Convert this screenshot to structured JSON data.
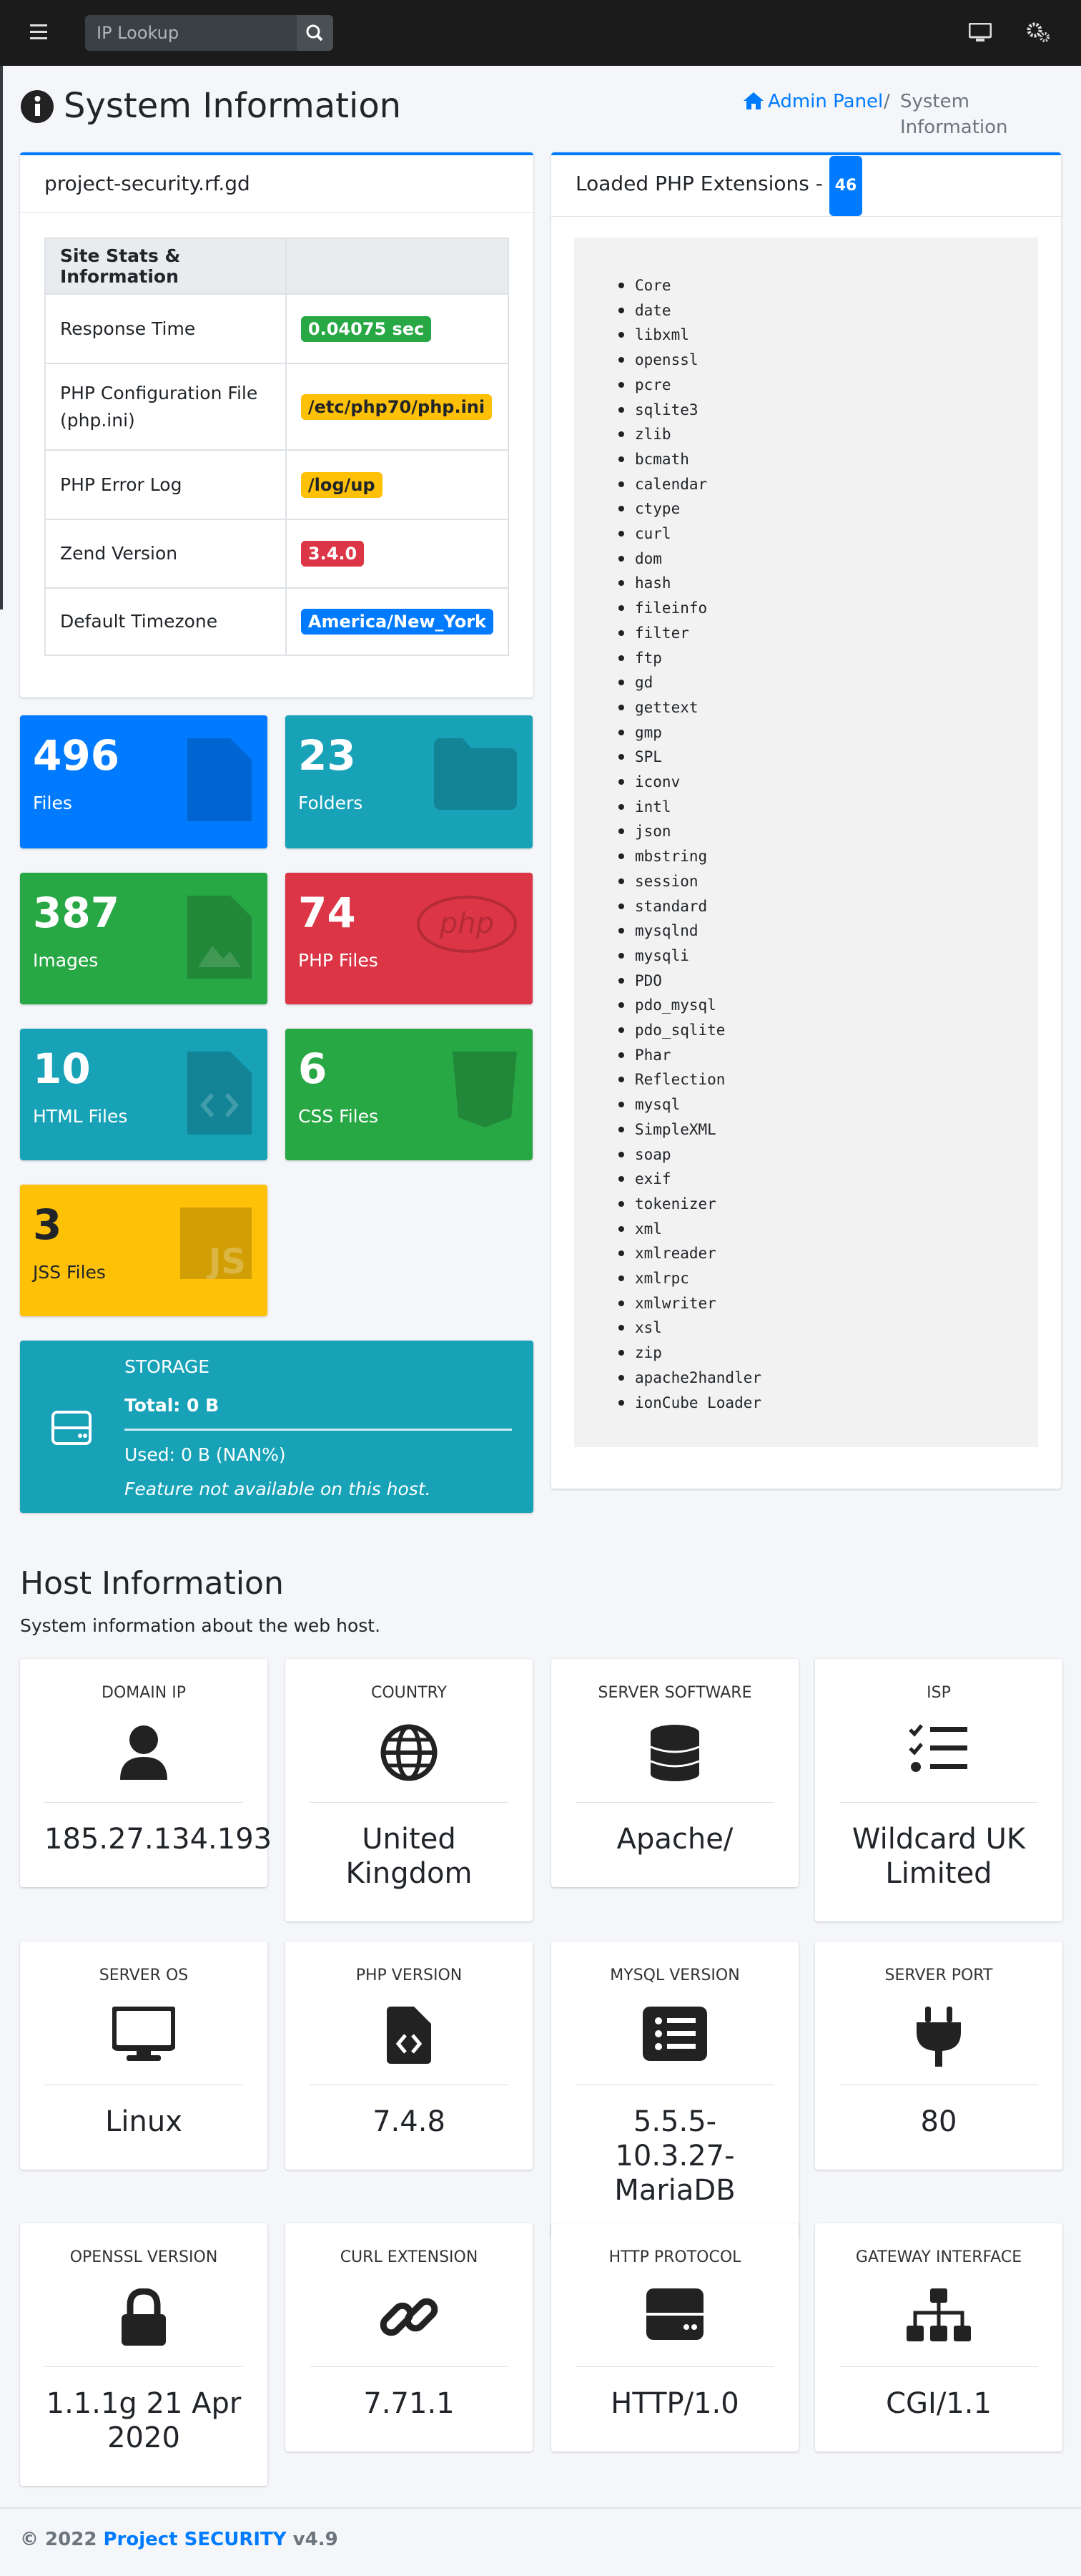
{
  "navbar": {
    "search_placeholder": "IP Lookup"
  },
  "header": {
    "title": "System Information",
    "breadcrumb": [
      "Admin Panel",
      "System Information"
    ]
  },
  "site_card": {
    "title": "project-security.rf.gd",
    "table_header": "Site Stats & Information",
    "rows": [
      [
        "Response Time",
        "0.04075 sec"
      ],
      [
        "PHP Configuration File (php.ini)",
        "/etc/php70/php.ini"
      ],
      [
        "PHP Error Log",
        "/log/up"
      ],
      [
        "Zend Version",
        "3.4.0"
      ],
      [
        "Default Timezone",
        "America/New_York"
      ]
    ]
  },
  "stats": [
    {
      "value": 496,
      "label": "Files"
    },
    {
      "value": 23,
      "label": "Folders"
    },
    {
      "value": 387,
      "label": "Images"
    },
    {
      "value": 74,
      "label": "PHP Files"
    },
    {
      "value": 10,
      "label": "HTML Files"
    },
    {
      "value": 6,
      "label": "CSS Files"
    },
    {
      "value": 3,
      "label": "JSS Files"
    }
  ],
  "storage": {
    "title": "STORAGE",
    "total": "Total: 0 B",
    "used": "Used: 0 B (NAN%)",
    "note": "Feature not available on this host."
  },
  "extensions": {
    "title": "Loaded PHP Extensions -",
    "count": 46,
    "items": [
      "Core",
      "date",
      "libxml",
      "openssl",
      "pcre",
      "sqlite3",
      "zlib",
      "bcmath",
      "calendar",
      "ctype",
      "curl",
      "dom",
      "hash",
      "fileinfo",
      "filter",
      "ftp",
      "gd",
      "gettext",
      "gmp",
      "SPL",
      "iconv",
      "intl",
      "json",
      "mbstring",
      "session",
      "standard",
      "mysqlnd",
      "mysqli",
      "PDO",
      "pdo_mysql",
      "pdo_sqlite",
      "Phar",
      "Reflection",
      "mysql",
      "SimpleXML",
      "soap",
      "exif",
      "tokenizer",
      "xml",
      "xmlreader",
      "xmlrpc",
      "xmlwriter",
      "xsl",
      "zip",
      "apache2handler",
      "ionCube Loader"
    ]
  },
  "host": {
    "title": "Host Information",
    "subtitle": "System information about the web host.",
    "cards": [
      {
        "label": "DOMAIN IP",
        "value": "185.27.134.193"
      },
      {
        "label": "COUNTRY",
        "value": "United Kingdom"
      },
      {
        "label": "SERVER SOFTWARE",
        "value": "Apache/"
      },
      {
        "label": "ISP",
        "value": "Wildcard UK Limited"
      },
      {
        "label": "SERVER OS",
        "value": "Linux"
      },
      {
        "label": "PHP VERSION",
        "value": "7.4.8"
      },
      {
        "label": "MYSQL VERSION",
        "value": "5.5.5-10.3.27-MariaDB"
      },
      {
        "label": "SERVER PORT",
        "value": "80"
      },
      {
        "label": "OPENSSL VERSION",
        "value": "1.1.1g 21 Apr 2020"
      },
      {
        "label": "CURL EXTENSION",
        "value": "7.71.1"
      },
      {
        "label": "HTTP PROTOCOL",
        "value": "HTTP/1.0"
      },
      {
        "label": "GATEWAY INTERFACE",
        "value": "CGI/1.1"
      }
    ]
  },
  "footer": {
    "prefix": "© 2022",
    "brand": "Project SECURITY",
    "version": "v4.9"
  }
}
